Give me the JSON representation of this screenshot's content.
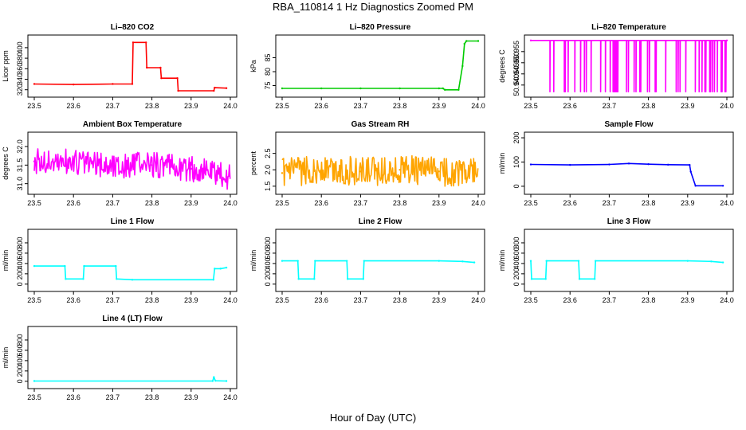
{
  "page": {
    "title": "RBA_110814  1 Hz Diagnostics Zoomed PM",
    "x_axis_label": "Hour of Day (UTC)"
  },
  "chart_data": [
    {
      "type": "line",
      "title": "Li–820 CO2",
      "ylabel": "Licor ppm",
      "color": "#ff0000",
      "xlim": [
        23.5,
        24.0
      ],
      "ylim": [
        312,
        418
      ],
      "x_ticks": [
        "23.5",
        "23.6",
        "23.7",
        "23.8",
        "23.9",
        "24.0"
      ],
      "y_ticks": [
        "320",
        "340",
        "360",
        "380",
        "400"
      ],
      "series": [
        {
          "x": [
            23.5,
            23.6,
            23.7,
            23.75,
            23.752,
            23.785,
            23.787,
            23.822,
            23.824,
            23.865,
            23.867,
            23.958,
            23.96,
            23.99
          ],
          "y": [
            331,
            330,
            331,
            331,
            410,
            410,
            362,
            362,
            342,
            342,
            318,
            318,
            324,
            323
          ]
        }
      ]
    },
    {
      "type": "line",
      "title": "Li–820 Pressure",
      "ylabel": "kPa",
      "color": "#00cc00",
      "xlim": [
        23.5,
        24.0
      ],
      "ylim": [
        72,
        92
      ],
      "x_ticks": [
        "23.5",
        "23.6",
        "23.7",
        "23.8",
        "23.9",
        "24.0"
      ],
      "y_ticks": [
        "75",
        "80",
        "85"
      ],
      "series": [
        {
          "x": [
            23.5,
            23.6,
            23.7,
            23.8,
            23.9,
            23.91,
            23.915,
            23.95,
            23.96,
            23.965,
            23.97,
            24.0
          ],
          "y": [
            74,
            74,
            74,
            74,
            74,
            74,
            73.5,
            73.5,
            82,
            90,
            91,
            91
          ]
        }
      ]
    },
    {
      "type": "line",
      "title": "Li–820 Temperature",
      "ylabel": "degrees C",
      "color": "#ff00ff",
      "xlim": [
        23.5,
        24.0
      ],
      "ylim": [
        50.936,
        50.961
      ],
      "x_ticks": [
        "23.5",
        "23.6",
        "23.7",
        "23.8",
        "23.9",
        "24.0"
      ],
      "y_ticks": [
        "50.940",
        "50.945",
        "50.950",
        "50.955"
      ],
      "series": [
        {
          "x": [
            23.5,
            24.0
          ],
          "y": [
            50.96,
            50.96
          ]
        }
      ]
    },
    {
      "type": "line",
      "title": "Ambient Box Temperature",
      "ylabel": "degrees C",
      "color": "#ff00ff",
      "xlim": [
        23.5,
        24.0
      ],
      "ylim": [
        30.8,
        32.3
      ],
      "x_ticks": [
        "23.5",
        "23.6",
        "23.7",
        "23.8",
        "23.9",
        "24.0"
      ],
      "y_ticks": [
        "31.0",
        "31.5",
        "32.0"
      ],
      "series": [
        {
          "x": [
            23.5,
            23.6,
            23.7,
            23.8,
            23.9,
            23.99
          ],
          "y": [
            31.6,
            31.6,
            31.5,
            31.5,
            31.4,
            31.2
          ]
        }
      ]
    },
    {
      "type": "line",
      "title": "Gas Stream RH",
      "ylabel": "percent",
      "color": "#ffa500",
      "xlim": [
        23.5,
        24.0
      ],
      "ylim": [
        1.35,
        3.05
      ],
      "x_ticks": [
        "23.5",
        "23.6",
        "23.7",
        "23.8",
        "23.9",
        "24.0"
      ],
      "y_ticks": [
        "1.5",
        "2.0",
        "2.5"
      ],
      "series": [
        {
          "x": [
            23.5,
            23.6,
            23.7,
            23.8,
            23.9,
            23.99
          ],
          "y": [
            1.9,
            2.0,
            1.95,
            2.0,
            1.95,
            1.9
          ]
        }
      ]
    },
    {
      "type": "line",
      "title": "Sample Flow",
      "ylabel": "ml/min",
      "color": "#0000ff",
      "xlim": [
        23.5,
        24.0
      ],
      "ylim": [
        -20,
        210
      ],
      "x_ticks": [
        "23.5",
        "23.6",
        "23.7",
        "23.8",
        "23.9",
        "24.0"
      ],
      "y_ticks": [
        "0",
        "100",
        "200"
      ],
      "series": [
        {
          "x": [
            23.5,
            23.6,
            23.7,
            23.75,
            23.8,
            23.85,
            23.905,
            23.908,
            23.92,
            23.99
          ],
          "y": [
            90,
            88,
            90,
            94,
            91,
            89,
            88,
            60,
            2,
            2
          ]
        }
      ]
    },
    {
      "type": "line",
      "title": "Line 1 Flow",
      "ylabel": "ml/min",
      "color": "#00ffff",
      "xlim": [
        23.5,
        24.0
      ],
      "ylim": [
        -80,
        1000
      ],
      "x_ticks": [
        "23.5",
        "23.6",
        "23.7",
        "23.8",
        "23.9",
        "24.0"
      ],
      "y_ticks": [
        "0",
        "200",
        "400",
        "600",
        "800"
      ],
      "series": [
        {
          "x": [
            23.5,
            23.578,
            23.58,
            23.625,
            23.627,
            23.708,
            23.71,
            23.75,
            23.957,
            23.96,
            23.975,
            23.99
          ],
          "y": [
            350,
            350,
            100,
            100,
            350,
            350,
            100,
            85,
            85,
            300,
            300,
            320
          ]
        }
      ]
    },
    {
      "type": "line",
      "title": "Line 2 Flow",
      "ylabel": "ml/min",
      "color": "#00ffff",
      "xlim": [
        23.5,
        24.0
      ],
      "ylim": [
        -80,
        1000
      ],
      "x_ticks": [
        "23.5",
        "23.6",
        "23.7",
        "23.8",
        "23.9",
        "24.0"
      ],
      "y_ticks": [
        "0",
        "200",
        "400",
        "600",
        "800"
      ],
      "series": [
        {
          "x": [
            23.5,
            23.54,
            23.542,
            23.582,
            23.584,
            23.665,
            23.667,
            23.707,
            23.709,
            23.9,
            23.96,
            23.99
          ],
          "y": [
            450,
            450,
            100,
            100,
            450,
            450,
            100,
            100,
            450,
            450,
            440,
            420
          ]
        }
      ]
    },
    {
      "type": "line",
      "title": "Line 3 Flow",
      "ylabel": "ml/min",
      "color": "#00ffff",
      "xlim": [
        23.5,
        24.0
      ],
      "ylim": [
        -80,
        1000
      ],
      "x_ticks": [
        "23.5",
        "23.6",
        "23.7",
        "23.8",
        "23.9",
        "24.0"
      ],
      "y_ticks": [
        "0",
        "200",
        "400",
        "600",
        "800"
      ],
      "series": [
        {
          "x": [
            23.5,
            23.502,
            23.538,
            23.54,
            23.622,
            23.624,
            23.663,
            23.665,
            23.9,
            23.96,
            23.99
          ],
          "y": [
            450,
            100,
            100,
            450,
            450,
            100,
            100,
            450,
            450,
            440,
            420
          ]
        }
      ]
    },
    {
      "type": "line",
      "title": "Line 4 (LT) Flow",
      "ylabel": "ml/min",
      "color": "#00ffff",
      "xlim": [
        23.5,
        24.0
      ],
      "ylim": [
        -80,
        1000
      ],
      "x_ticks": [
        "23.5",
        "23.6",
        "23.7",
        "23.8",
        "23.9",
        "24.0"
      ],
      "y_ticks": [
        "0",
        "200",
        "400",
        "600",
        "800"
      ],
      "series": [
        {
          "x": [
            23.5,
            23.955,
            23.958,
            23.962,
            23.99
          ],
          "y": [
            5,
            5,
            80,
            10,
            5
          ]
        }
      ]
    }
  ]
}
